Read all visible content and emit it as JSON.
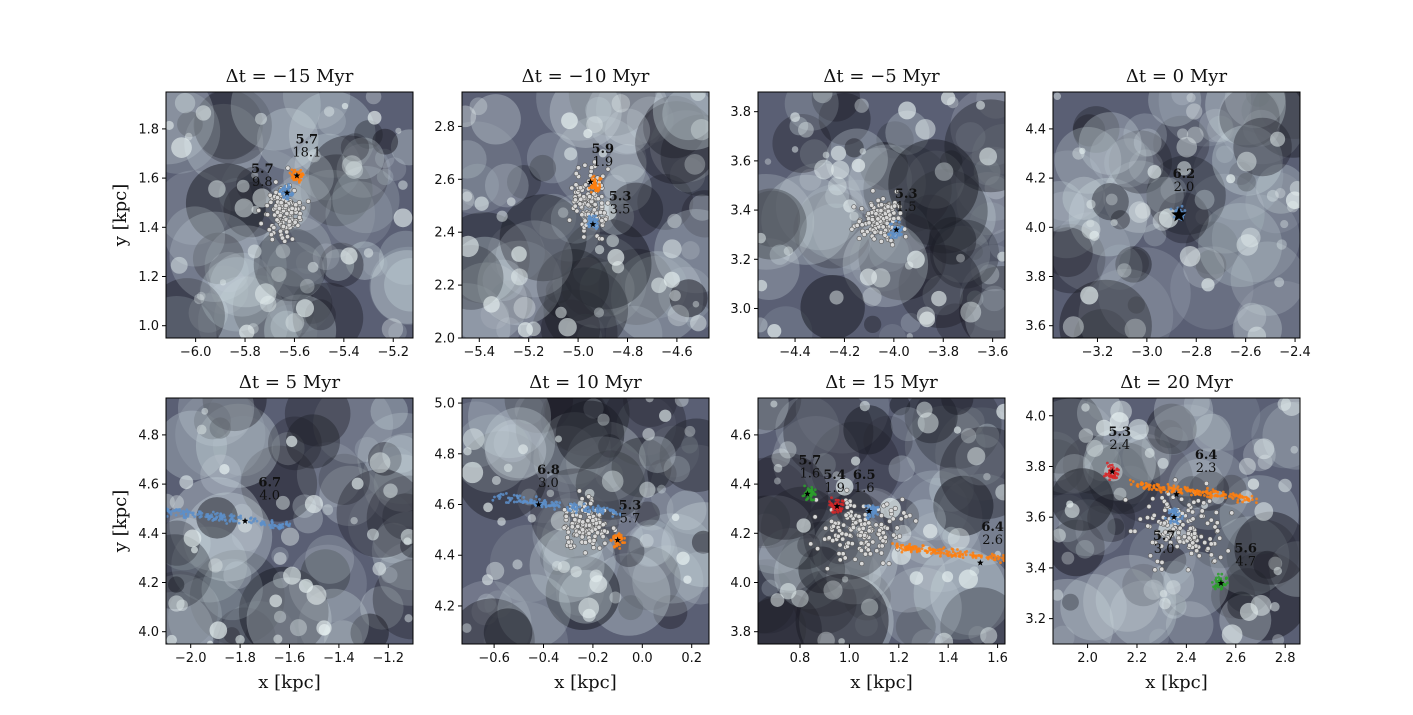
{
  "chart_data": [
    {
      "type": "scatter",
      "title": "Δt = −15 Myr",
      "xlabel": "",
      "ylabel": "y [kpc]",
      "xlim": [
        -6.12,
        -5.12
      ],
      "ylim": [
        0.95,
        1.95
      ],
      "xticks": [
        -6.0,
        -5.8,
        -5.6,
        -5.4,
        -5.2
      ],
      "xtick_labels": [
        "−6.0",
        "−5.8",
        "−5.6",
        "−5.4",
        "−5.2"
      ],
      "yticks": [
        1.0,
        1.2,
        1.4,
        1.6,
        1.8
      ],
      "ytick_labels": [
        "1.0",
        "1.2",
        "1.4",
        "1.6",
        "1.8"
      ],
      "grey_points": {
        "center": [
          -5.64,
          1.47
        ],
        "spread": [
          0.05,
          0.08
        ]
      },
      "clusters": [
        {
          "color": "#ff7f0e",
          "x": -5.59,
          "y": 1.61,
          "star": [
            -5.59,
            1.61
          ]
        },
        {
          "color": "#5d8fc9",
          "x": -5.63,
          "y": 1.54,
          "star": [
            -5.63,
            1.54
          ]
        }
      ],
      "annotations": [
        {
          "bold": "5.7",
          "value": "18.1",
          "x": -5.55,
          "y": 1.74
        },
        {
          "bold": "5.7",
          "value": "9.8",
          "x": -5.73,
          "y": 1.62
        }
      ]
    },
    {
      "type": "scatter",
      "title": "Δt = −10 Myr",
      "xlabel": "",
      "ylabel": "",
      "xlim": [
        -5.47,
        -4.47
      ],
      "ylim": [
        2.0,
        2.93
      ],
      "xticks": [
        -5.4,
        -5.2,
        -5.0,
        -4.8,
        -4.6
      ],
      "xtick_labels": [
        "−5.4",
        "−5.2",
        "−5.0",
        "−4.8",
        "−4.6"
      ],
      "yticks": [
        2.0,
        2.2,
        2.4,
        2.6,
        2.8
      ],
      "ytick_labels": [
        "2.0",
        "2.2",
        "2.4",
        "2.6",
        "2.8"
      ],
      "grey_points": {
        "center": [
          -4.95,
          2.52
        ],
        "spread": [
          0.05,
          0.08
        ]
      },
      "clusters": [
        {
          "color": "#ff7f0e",
          "x": -4.93,
          "y": 2.58,
          "star": [
            -4.95,
            2.59
          ]
        },
        {
          "color": "#5d8fc9",
          "x": -4.94,
          "y": 2.44,
          "star": [
            -4.94,
            2.43
          ]
        }
      ],
      "annotations": [
        {
          "bold": "5.9",
          "value": "1.9",
          "x": -4.9,
          "y": 2.7
        },
        {
          "bold": "5.3",
          "value": "3.5",
          "x": -4.83,
          "y": 2.52
        }
      ]
    },
    {
      "type": "scatter",
      "title": "Δt = −5 Myr",
      "xlabel": "",
      "ylabel": "",
      "xlim": [
        -4.55,
        -3.55
      ],
      "ylim": [
        2.88,
        3.88
      ],
      "xticks": [
        -4.4,
        -4.2,
        -4.0,
        -3.8,
        -3.6
      ],
      "xtick_labels": [
        "−4.4",
        "−4.2",
        "−4.0",
        "−3.8",
        "−3.6"
      ],
      "yticks": [
        3.0,
        3.2,
        3.4,
        3.6,
        3.8
      ],
      "ytick_labels": [
        "3.0",
        "3.2",
        "3.4",
        "3.6",
        "3.8"
      ],
      "grey_points": {
        "center": [
          -4.05,
          3.36
        ],
        "spread": [
          0.06,
          0.06
        ]
      },
      "clusters": [
        {
          "color": "#5d8fc9",
          "x": -3.99,
          "y": 3.32,
          "star": [
            -3.99,
            3.32
          ]
        }
      ],
      "annotations": [
        {
          "bold": "5.3",
          "value": "1.5",
          "x": -3.95,
          "y": 3.45
        }
      ]
    },
    {
      "type": "scatter",
      "title": "Δt = 0 Myr",
      "xlabel": "",
      "ylabel": "",
      "xlim": [
        -3.38,
        -2.38
      ],
      "ylim": [
        3.55,
        4.55
      ],
      "xticks": [
        -3.2,
        -3.0,
        -2.8,
        -2.6,
        -2.4
      ],
      "xtick_labels": [
        "−3.2",
        "−3.0",
        "−2.8",
        "−2.6",
        "−2.4"
      ],
      "yticks": [
        3.6,
        3.8,
        4.0,
        4.2,
        4.4
      ],
      "ytick_labels": [
        "3.6",
        "3.8",
        "4.0",
        "4.2",
        "4.4"
      ],
      "clusters": [
        {
          "color": "#5d8fc9",
          "x": -2.87,
          "y": 4.05,
          "star": [
            -2.87,
            4.05
          ],
          "big_star": true
        }
      ],
      "annotations": [
        {
          "bold": "6.2",
          "value": "2.0",
          "x": -2.85,
          "y": 4.2
        }
      ]
    },
    {
      "type": "scatter",
      "title": "Δt = 5 Myr",
      "xlabel": "x [kpc]",
      "ylabel": "y [kpc]",
      "xlim": [
        -2.1,
        -1.1
      ],
      "ylim": [
        3.95,
        4.95
      ],
      "xticks": [
        -2.0,
        -1.8,
        -1.6,
        -1.4,
        -1.2
      ],
      "xtick_labels": [
        "−2.0",
        "−1.8",
        "−1.6",
        "−1.4",
        "−1.2"
      ],
      "yticks": [
        4.0,
        4.2,
        4.4,
        4.6,
        4.8
      ],
      "ytick_labels": [
        "4.0",
        "4.2",
        "4.4",
        "4.6",
        "4.8"
      ],
      "clusters": [
        {
          "color": "#5d8fc9",
          "x": -1.85,
          "y": 4.46,
          "star": [
            -1.78,
            4.45
          ],
          "elongated": true
        }
      ],
      "annotations": [
        {
          "bold": "6.7",
          "value": "4.0",
          "x": -1.68,
          "y": 4.59
        }
      ]
    },
    {
      "type": "scatter",
      "title": "Δt = 10 Myr",
      "xlabel": "x [kpc]",
      "ylabel": "",
      "xlim": [
        -0.73,
        0.27
      ],
      "ylim": [
        4.05,
        5.02
      ],
      "xticks": [
        -0.6,
        -0.4,
        -0.2,
        0.0,
        0.2
      ],
      "xtick_labels": [
        "−0.6",
        "−0.4",
        "−0.2",
        "0.0",
        "0.2"
      ],
      "yticks": [
        4.2,
        4.4,
        4.6,
        4.8,
        5.0
      ],
      "ytick_labels": [
        "4.2",
        "4.4",
        "4.6",
        "4.8",
        "5.0"
      ],
      "grey_points": {
        "center": [
          -0.22,
          4.52
        ],
        "spread": [
          0.07,
          0.07
        ]
      },
      "clusters": [
        {
          "color": "#5d8fc9",
          "x": -0.35,
          "y": 4.6,
          "star": [
            -0.42,
            4.6
          ],
          "elongated": true
        },
        {
          "color": "#ff7f0e",
          "x": -0.1,
          "y": 4.46,
          "star": [
            -0.1,
            4.46
          ]
        }
      ],
      "annotations": [
        {
          "bold": "6.8",
          "value": "3.0",
          "x": -0.38,
          "y": 4.72
        },
        {
          "bold": "5.3",
          "value": "5.7",
          "x": -0.05,
          "y": 4.58
        }
      ]
    },
    {
      "type": "scatter",
      "title": "Δt = 15 Myr",
      "xlabel": "x [kpc]",
      "ylabel": "",
      "xlim": [
        0.63,
        1.63
      ],
      "ylim": [
        3.75,
        4.75
      ],
      "xticks": [
        0.8,
        1.0,
        1.2,
        1.4,
        1.6
      ],
      "xtick_labels": [
        "0.8",
        "1.0",
        "1.2",
        "1.4",
        "1.6"
      ],
      "yticks": [
        3.8,
        4.0,
        4.2,
        4.4,
        4.6
      ],
      "ytick_labels": [
        "3.8",
        "4.0",
        "4.2",
        "4.4",
        "4.6"
      ],
      "grey_points": {
        "center": [
          1.05,
          4.22
        ],
        "spread": [
          0.12,
          0.09
        ]
      },
      "clusters": [
        {
          "color": "#2ca02c",
          "x": 0.84,
          "y": 4.36,
          "star": [
            0.83,
            4.36
          ]
        },
        {
          "color": "#d62728",
          "x": 0.95,
          "y": 4.31,
          "star": [
            0.95,
            4.31
          ]
        },
        {
          "color": "#5d8fc9",
          "x": 1.09,
          "y": 4.29,
          "star": [
            1.08,
            4.29
          ]
        },
        {
          "color": "#ff7f0e",
          "x": 1.42,
          "y": 4.12,
          "star": [
            1.53,
            4.08
          ],
          "elongated": true
        }
      ],
      "annotations": [
        {
          "bold": "5.7",
          "value": "1.6",
          "x": 0.84,
          "y": 4.48
        },
        {
          "bold": "5.4",
          "value": "1.9",
          "x": 0.94,
          "y": 4.42
        },
        {
          "bold": "6.5",
          "value": "1.6",
          "x": 1.06,
          "y": 4.42
        },
        {
          "bold": "6.4",
          "value": "2.6",
          "x": 1.58,
          "y": 4.21
        }
      ]
    },
    {
      "type": "scatter",
      "title": "Δt = 20 Myr",
      "xlabel": "x [kpc]",
      "ylabel": "",
      "xlim": [
        1.86,
        2.86
      ],
      "ylim": [
        3.1,
        4.07
      ],
      "xticks": [
        2.0,
        2.2,
        2.4,
        2.6,
        2.8
      ],
      "xtick_labels": [
        "2.0",
        "2.2",
        "2.4",
        "2.6",
        "2.8"
      ],
      "yticks": [
        3.2,
        3.4,
        3.6,
        3.8,
        4.0
      ],
      "ytick_labels": [
        "3.2",
        "3.4",
        "3.6",
        "3.8",
        "4.0"
      ],
      "grey_points": {
        "center": [
          2.38,
          3.55
        ],
        "spread": [
          0.12,
          0.1
        ]
      },
      "clusters": [
        {
          "color": "#d62728",
          "x": 2.1,
          "y": 3.78,
          "star": [
            2.1,
            3.78
          ]
        },
        {
          "color": "#ff7f0e",
          "x": 2.44,
          "y": 3.7,
          "star": [
            2.36,
            3.69
          ],
          "elongated": true
        },
        {
          "color": "#5d8fc9",
          "x": 2.35,
          "y": 3.61,
          "star": [
            2.35,
            3.6
          ]
        },
        {
          "color": "#2ca02c",
          "x": 2.54,
          "y": 3.34,
          "star": [
            2.54,
            3.34
          ]
        }
      ],
      "annotations": [
        {
          "bold": "5.3",
          "value": "2.4",
          "x": 2.13,
          "y": 3.92
        },
        {
          "bold": "6.4",
          "value": "2.3",
          "x": 2.48,
          "y": 3.83
        },
        {
          "bold": "5.7",
          "value": "3.0",
          "x": 2.31,
          "y": 3.51
        },
        {
          "bold": "5.6",
          "value": "4.7",
          "x": 2.64,
          "y": 3.46
        }
      ]
    }
  ]
}
